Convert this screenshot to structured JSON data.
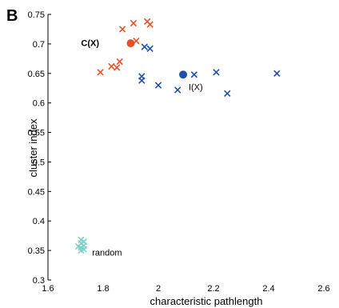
{
  "chart_data": {
    "type": "scatter",
    "panel_label": "B",
    "xlabel": "characteristic pathlength",
    "ylabel": "cluster index",
    "xlim": [
      1.6,
      2.6
    ],
    "ylim": [
      0.3,
      0.75
    ],
    "xticks": [
      "1.6",
      "1.8",
      "2",
      "2.2",
      "2.4",
      "2.6"
    ],
    "yticks": [
      "0.3",
      "0.35",
      "0.4",
      "0.45",
      "0.5",
      "0.55",
      "0.6",
      "0.65",
      "0.7",
      "0.75"
    ],
    "grid": false,
    "series": [
      {
        "name": "C(X)",
        "color": "#e8502a",
        "marker": "x",
        "points": [
          [
            1.79,
            0.652
          ],
          [
            1.83,
            0.662
          ],
          [
            1.85,
            0.66
          ],
          [
            1.86,
            0.67
          ],
          [
            1.87,
            0.725
          ],
          [
            1.91,
            0.735
          ],
          [
            1.92,
            0.705
          ],
          [
            1.96,
            0.738
          ],
          [
            1.97,
            0.733
          ]
        ],
        "mean": [
          1.9,
          0.701
        ]
      },
      {
        "name": "I(X)",
        "color": "#1f4fa8",
        "marker": "x",
        "points": [
          [
            1.94,
            0.638
          ],
          [
            1.94,
            0.645
          ],
          [
            1.95,
            0.695
          ],
          [
            1.97,
            0.692
          ],
          [
            2.0,
            0.63
          ],
          [
            2.07,
            0.622
          ],
          [
            2.13,
            0.648
          ],
          [
            2.21,
            0.652
          ],
          [
            2.25,
            0.616
          ],
          [
            2.43,
            0.65
          ]
        ],
        "mean": [
          2.09,
          0.648
        ]
      },
      {
        "name": "random",
        "color": "#7fcfcf",
        "marker": "x",
        "points": [
          [
            1.72,
            0.35
          ],
          [
            1.72,
            0.355
          ],
          [
            1.73,
            0.358
          ],
          [
            1.72,
            0.362
          ],
          [
            1.73,
            0.365
          ],
          [
            1.72,
            0.368
          ],
          [
            1.73,
            0.352
          ],
          [
            1.71,
            0.357
          ]
        ]
      }
    ],
    "annotations": [
      {
        "text": "C(X)",
        "x": 1.72,
        "y": 0.702,
        "bold": true
      },
      {
        "text": "I(X)",
        "x": 2.11,
        "y": 0.627,
        "bold": false
      },
      {
        "text": "random",
        "x": 1.76,
        "y": 0.347,
        "bold": false
      }
    ]
  }
}
